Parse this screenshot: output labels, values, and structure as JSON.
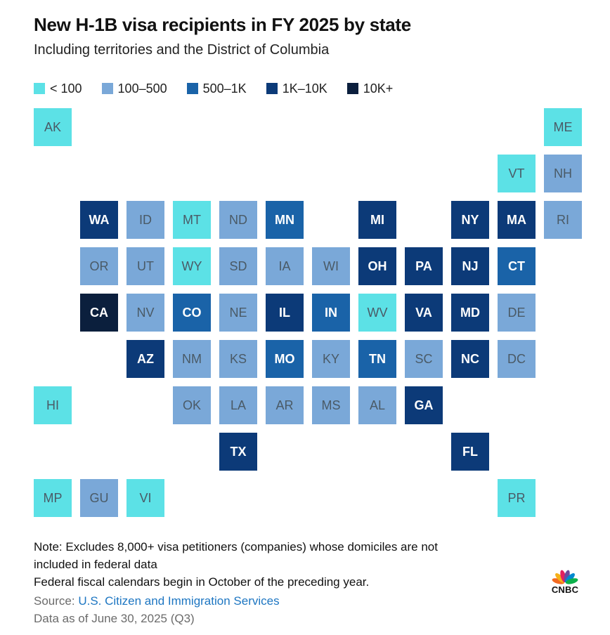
{
  "title": "New H-1B visa recipients in FY 2025 by state",
  "subtitle": "Including territories and the District of Columbia",
  "legend": [
    {
      "label": "< 100",
      "color": "#5ce1e6"
    },
    {
      "label": "100–500",
      "color": "#7aa8d8"
    },
    {
      "label": "500–1K",
      "color": "#1a63a8"
    },
    {
      "label": "1K–10K",
      "color": "#0c3a78"
    },
    {
      "label": "10K+",
      "color": "#0b1f3d"
    }
  ],
  "tiles": [
    {
      "code": "AK",
      "bin": 0,
      "row": 0,
      "col": 0
    },
    {
      "code": "ME",
      "bin": 0,
      "row": 0,
      "col": 11
    },
    {
      "code": "VT",
      "bin": 0,
      "row": 1,
      "col": 10
    },
    {
      "code": "NH",
      "bin": 1,
      "row": 1,
      "col": 11
    },
    {
      "code": "WA",
      "bin": 3,
      "row": 2,
      "col": 1
    },
    {
      "code": "ID",
      "bin": 1,
      "row": 2,
      "col": 2
    },
    {
      "code": "MT",
      "bin": 0,
      "row": 2,
      "col": 3
    },
    {
      "code": "ND",
      "bin": 1,
      "row": 2,
      "col": 4
    },
    {
      "code": "MN",
      "bin": 2,
      "row": 2,
      "col": 5
    },
    {
      "code": "MI",
      "bin": 3,
      "row": 2,
      "col": 7
    },
    {
      "code": "NY",
      "bin": 3,
      "row": 2,
      "col": 9
    },
    {
      "code": "MA",
      "bin": 3,
      "row": 2,
      "col": 10
    },
    {
      "code": "RI",
      "bin": 1,
      "row": 2,
      "col": 11
    },
    {
      "code": "OR",
      "bin": 1,
      "row": 3,
      "col": 1
    },
    {
      "code": "UT",
      "bin": 1,
      "row": 3,
      "col": 2
    },
    {
      "code": "WY",
      "bin": 0,
      "row": 3,
      "col": 3
    },
    {
      "code": "SD",
      "bin": 1,
      "row": 3,
      "col": 4
    },
    {
      "code": "IA",
      "bin": 1,
      "row": 3,
      "col": 5
    },
    {
      "code": "WI",
      "bin": 1,
      "row": 3,
      "col": 6
    },
    {
      "code": "OH",
      "bin": 3,
      "row": 3,
      "col": 7
    },
    {
      "code": "PA",
      "bin": 3,
      "row": 3,
      "col": 8
    },
    {
      "code": "NJ",
      "bin": 3,
      "row": 3,
      "col": 9
    },
    {
      "code": "CT",
      "bin": 2,
      "row": 3,
      "col": 10
    },
    {
      "code": "CA",
      "bin": 4,
      "row": 4,
      "col": 1
    },
    {
      "code": "NV",
      "bin": 1,
      "row": 4,
      "col": 2
    },
    {
      "code": "CO",
      "bin": 2,
      "row": 4,
      "col": 3
    },
    {
      "code": "NE",
      "bin": 1,
      "row": 4,
      "col": 4
    },
    {
      "code": "IL",
      "bin": 3,
      "row": 4,
      "col": 5
    },
    {
      "code": "IN",
      "bin": 2,
      "row": 4,
      "col": 6
    },
    {
      "code": "WV",
      "bin": 0,
      "row": 4,
      "col": 7
    },
    {
      "code": "VA",
      "bin": 3,
      "row": 4,
      "col": 8
    },
    {
      "code": "MD",
      "bin": 3,
      "row": 4,
      "col": 9
    },
    {
      "code": "DE",
      "bin": 1,
      "row": 4,
      "col": 10
    },
    {
      "code": "AZ",
      "bin": 3,
      "row": 5,
      "col": 2
    },
    {
      "code": "NM",
      "bin": 1,
      "row": 5,
      "col": 3
    },
    {
      "code": "KS",
      "bin": 1,
      "row": 5,
      "col": 4
    },
    {
      "code": "MO",
      "bin": 2,
      "row": 5,
      "col": 5
    },
    {
      "code": "KY",
      "bin": 1,
      "row": 5,
      "col": 6
    },
    {
      "code": "TN",
      "bin": 2,
      "row": 5,
      "col": 7
    },
    {
      "code": "SC",
      "bin": 1,
      "row": 5,
      "col": 8
    },
    {
      "code": "NC",
      "bin": 3,
      "row": 5,
      "col": 9
    },
    {
      "code": "DC",
      "bin": 1,
      "row": 5,
      "col": 10
    },
    {
      "code": "HI",
      "bin": 0,
      "row": 6,
      "col": 0
    },
    {
      "code": "OK",
      "bin": 1,
      "row": 6,
      "col": 3
    },
    {
      "code": "LA",
      "bin": 1,
      "row": 6,
      "col": 4
    },
    {
      "code": "AR",
      "bin": 1,
      "row": 6,
      "col": 5
    },
    {
      "code": "MS",
      "bin": 1,
      "row": 6,
      "col": 6
    },
    {
      "code": "AL",
      "bin": 1,
      "row": 6,
      "col": 7
    },
    {
      "code": "GA",
      "bin": 3,
      "row": 6,
      "col": 8
    },
    {
      "code": "TX",
      "bin": 3,
      "row": 7,
      "col": 4
    },
    {
      "code": "FL",
      "bin": 3,
      "row": 7,
      "col": 9
    },
    {
      "code": "MP",
      "bin": 0,
      "row": 8,
      "col": 0
    },
    {
      "code": "GU",
      "bin": 1,
      "row": 8,
      "col": 1
    },
    {
      "code": "VI",
      "bin": 0,
      "row": 8,
      "col": 2
    },
    {
      "code": "PR",
      "bin": 0,
      "row": 8,
      "col": 10
    }
  ],
  "notes": [
    "Note: Excludes 8,000+ visa petitioners (companies) whose domiciles are not",
    "included in federal data",
    "Federal fiscal calendars begin in October of the preceding year."
  ],
  "source": {
    "prefix": "Source: ",
    "link": "U.S. Citizen and Immigration Services"
  },
  "data_as_of": "Data as of June 30, 2025 (Q3)",
  "logo": {
    "text": "CNBC"
  }
}
